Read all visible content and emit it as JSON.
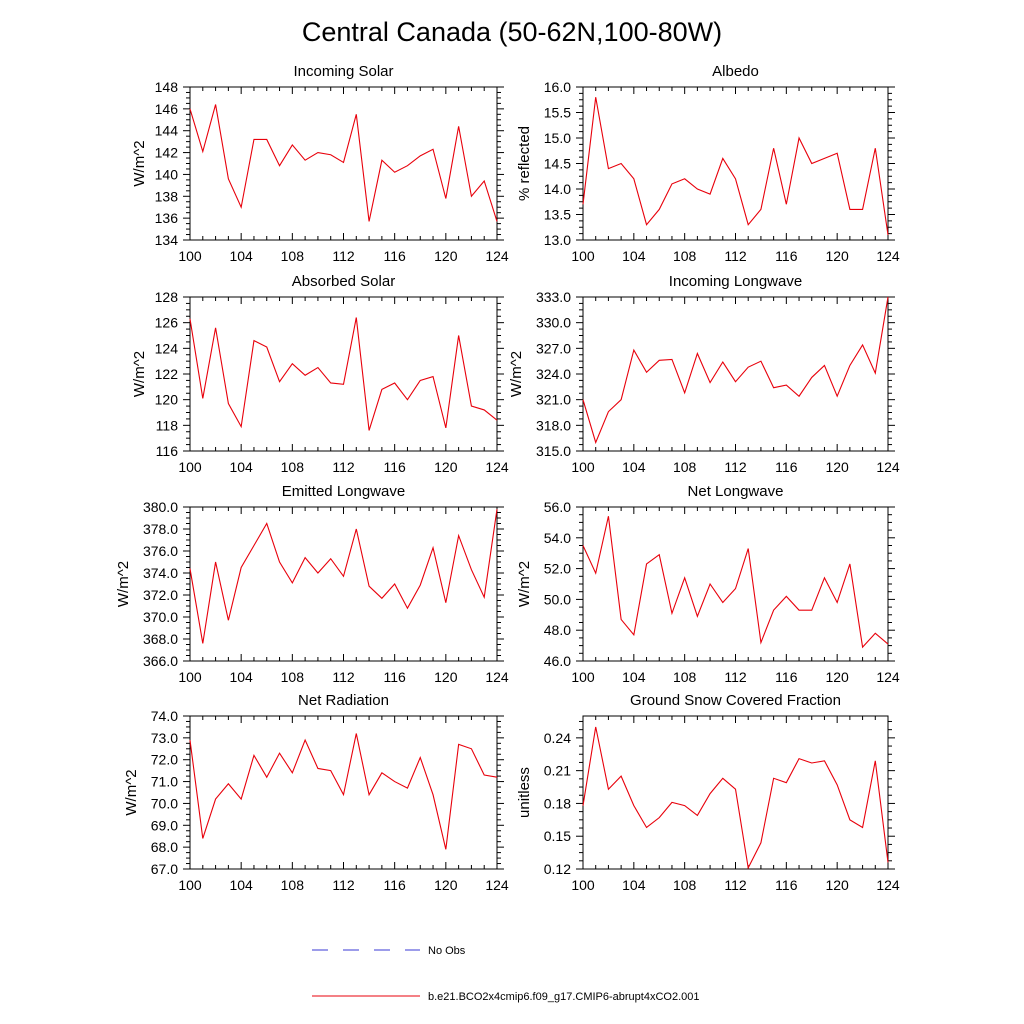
{
  "figure": {
    "title": "Central Canada (50-62N,100-80W)"
  },
  "colors": {
    "model_line": "#e8000b",
    "obs_line": "#3a3ad6",
    "frame": "#000000"
  },
  "legend": {
    "obs_label": "No Obs",
    "model_label": "b.e21.BCO2x4cmip6.f09_g17.CMIP6-abrupt4xCO2.001"
  },
  "chart_data": [
    {
      "type": "line",
      "title": "Incoming Solar",
      "ylabel": "W/m^2",
      "xlabel": "",
      "xlim": [
        100,
        124
      ],
      "ylim": [
        134,
        148
      ],
      "xticks": [
        "100",
        "104",
        "108",
        "112",
        "116",
        "120",
        "124"
      ],
      "yticks": [
        "134",
        "136",
        "138",
        "140",
        "142",
        "144",
        "146",
        "148"
      ],
      "x": [
        100,
        101,
        102,
        103,
        104,
        105,
        106,
        107,
        108,
        109,
        110,
        111,
        112,
        113,
        114,
        115,
        116,
        117,
        118,
        119,
        120,
        121,
        122,
        123,
        124
      ],
      "series": [
        {
          "name": "b.e21.BCO2x4cmip6.f09_g17.CMIP6-abrupt4xCO2.001",
          "values": [
            146.0,
            142.1,
            146.4,
            139.6,
            137.0,
            143.2,
            143.2,
            140.8,
            142.7,
            141.3,
            142.0,
            141.8,
            141.1,
            145.5,
            135.7,
            141.3,
            140.2,
            140.8,
            141.7,
            142.3,
            137.8,
            144.4,
            138.0,
            139.4,
            135.7
          ]
        }
      ]
    },
    {
      "type": "line",
      "title": "Albedo",
      "ylabel": "% reflected",
      "xlabel": "",
      "xlim": [
        100,
        124
      ],
      "ylim": [
        13.0,
        16.0
      ],
      "xticks": [
        "100",
        "104",
        "108",
        "112",
        "116",
        "120",
        "124"
      ],
      "yticks": [
        "13.0",
        "13.5",
        "14.0",
        "14.5",
        "15.0",
        "15.5",
        "16.0"
      ],
      "x": [
        100,
        101,
        102,
        103,
        104,
        105,
        106,
        107,
        108,
        109,
        110,
        111,
        112,
        113,
        114,
        115,
        116,
        117,
        118,
        119,
        120,
        121,
        122,
        123,
        124
      ],
      "series": [
        {
          "name": "b.e21.BCO2x4cmip6.f09_g17.CMIP6-abrupt4xCO2.001",
          "values": [
            13.7,
            15.8,
            14.4,
            14.5,
            14.2,
            13.3,
            13.6,
            14.1,
            14.2,
            14.0,
            13.9,
            14.6,
            14.2,
            13.3,
            13.6,
            14.8,
            13.7,
            15.0,
            14.5,
            14.6,
            14.7,
            13.6,
            13.6,
            14.8,
            13.1
          ]
        }
      ]
    },
    {
      "type": "line",
      "title": "Absorbed Solar",
      "ylabel": "W/m^2",
      "xlabel": "",
      "xlim": [
        100,
        124
      ],
      "ylim": [
        116,
        128
      ],
      "xticks": [
        "100",
        "104",
        "108",
        "112",
        "116",
        "120",
        "124"
      ],
      "yticks": [
        "116",
        "118",
        "120",
        "122",
        "124",
        "126",
        "128"
      ],
      "x": [
        100,
        101,
        102,
        103,
        104,
        105,
        106,
        107,
        108,
        109,
        110,
        111,
        112,
        113,
        114,
        115,
        116,
        117,
        118,
        119,
        120,
        121,
        122,
        123,
        124
      ],
      "series": [
        {
          "name": "b.e21.BCO2x4cmip6.f09_g17.CMIP6-abrupt4xCO2.001",
          "values": [
            126.3,
            120.1,
            125.6,
            119.7,
            117.9,
            124.6,
            124.1,
            121.4,
            122.8,
            121.9,
            122.5,
            121.3,
            121.2,
            126.4,
            117.6,
            120.8,
            121.3,
            120.0,
            121.5,
            121.8,
            117.8,
            125.0,
            119.5,
            119.2,
            118.4
          ]
        }
      ]
    },
    {
      "type": "line",
      "title": "Incoming Longwave",
      "ylabel": "W/m^2",
      "xlabel": "",
      "xlim": [
        100,
        124
      ],
      "ylim": [
        315.0,
        333.0
      ],
      "xticks": [
        "100",
        "104",
        "108",
        "112",
        "116",
        "120",
        "124"
      ],
      "yticks": [
        "315.0",
        "318.0",
        "321.0",
        "324.0",
        "327.0",
        "330.0",
        "333.0"
      ],
      "x": [
        100,
        101,
        102,
        103,
        104,
        105,
        106,
        107,
        108,
        109,
        110,
        111,
        112,
        113,
        114,
        115,
        116,
        117,
        118,
        119,
        120,
        121,
        122,
        123,
        124
      ],
      "series": [
        {
          "name": "b.e21.BCO2x4cmip6.f09_g17.CMIP6-abrupt4xCO2.001",
          "values": [
            321.0,
            316.0,
            319.6,
            321.0,
            326.8,
            324.2,
            325.6,
            325.7,
            321.8,
            326.4,
            323.0,
            325.4,
            323.1,
            324.8,
            325.5,
            322.4,
            322.7,
            321.4,
            323.6,
            325.0,
            321.4,
            325.0,
            327.4,
            324.1,
            333.0
          ]
        }
      ]
    },
    {
      "type": "line",
      "title": "Emitted Longwave",
      "ylabel": "W/m^2",
      "xlabel": "",
      "xlim": [
        100,
        124
      ],
      "ylim": [
        366.0,
        380.0
      ],
      "xticks": [
        "100",
        "104",
        "108",
        "112",
        "116",
        "120",
        "124"
      ],
      "yticks": [
        "366.0",
        "368.0",
        "370.0",
        "372.0",
        "374.0",
        "376.0",
        "378.0",
        "380.0"
      ],
      "x": [
        100,
        101,
        102,
        103,
        104,
        105,
        106,
        107,
        108,
        109,
        110,
        111,
        112,
        113,
        114,
        115,
        116,
        117,
        118,
        119,
        120,
        121,
        122,
        123,
        124
      ],
      "series": [
        {
          "name": "b.e21.BCO2x4cmip6.f09_g17.CMIP6-abrupt4xCO2.001",
          "values": [
            374.4,
            367.6,
            375.0,
            369.7,
            374.5,
            376.5,
            378.5,
            375.0,
            373.1,
            375.4,
            374.0,
            375.3,
            373.7,
            378.0,
            372.8,
            371.7,
            373.0,
            370.8,
            372.9,
            376.3,
            371.3,
            377.4,
            374.3,
            371.8,
            379.8
          ]
        }
      ]
    },
    {
      "type": "line",
      "title": "Net Longwave",
      "ylabel": "W/m^2",
      "xlabel": "",
      "xlim": [
        100,
        124
      ],
      "ylim": [
        46.0,
        56.0
      ],
      "xticks": [
        "100",
        "104",
        "108",
        "112",
        "116",
        "120",
        "124"
      ],
      "yticks": [
        "46.0",
        "48.0",
        "50.0",
        "52.0",
        "54.0",
        "56.0"
      ],
      "x": [
        100,
        101,
        102,
        103,
        104,
        105,
        106,
        107,
        108,
        109,
        110,
        111,
        112,
        113,
        114,
        115,
        116,
        117,
        118,
        119,
        120,
        121,
        122,
        123,
        124
      ],
      "series": [
        {
          "name": "b.e21.BCO2x4cmip6.f09_g17.CMIP6-abrupt4xCO2.001",
          "values": [
            53.5,
            51.7,
            55.4,
            48.7,
            47.7,
            52.3,
            52.9,
            49.1,
            51.4,
            48.9,
            51.0,
            49.8,
            50.7,
            53.3,
            47.2,
            49.3,
            50.2,
            49.3,
            49.3,
            51.4,
            49.8,
            52.3,
            46.9,
            47.8,
            47.1
          ]
        }
      ]
    },
    {
      "type": "line",
      "title": "Net Radiation",
      "ylabel": "W/m^2",
      "xlabel": "",
      "xlim": [
        100,
        124
      ],
      "ylim": [
        67.0,
        74.0
      ],
      "xticks": [
        "100",
        "104",
        "108",
        "112",
        "116",
        "120",
        "124"
      ],
      "yticks": [
        "67.0",
        "68.0",
        "69.0",
        "70.0",
        "71.0",
        "72.0",
        "73.0",
        "74.0"
      ],
      "x": [
        100,
        101,
        102,
        103,
        104,
        105,
        106,
        107,
        108,
        109,
        110,
        111,
        112,
        113,
        114,
        115,
        116,
        117,
        118,
        119,
        120,
        121,
        122,
        123,
        124
      ],
      "series": [
        {
          "name": "b.e21.BCO2x4cmip6.f09_g17.CMIP6-abrupt4xCO2.001",
          "values": [
            72.9,
            68.4,
            70.2,
            70.9,
            70.2,
            72.2,
            71.2,
            72.3,
            71.4,
            72.9,
            71.6,
            71.5,
            70.4,
            73.2,
            70.4,
            71.4,
            71.0,
            70.7,
            72.1,
            70.4,
            67.9,
            72.7,
            72.5,
            71.3,
            71.2
          ]
        }
      ]
    },
    {
      "type": "line",
      "title": "Ground Snow Covered Fraction",
      "ylabel": "unitless",
      "xlabel": "",
      "xlim": [
        100,
        124
      ],
      "ylim": [
        0.12,
        0.26
      ],
      "xticks": [
        "100",
        "104",
        "108",
        "112",
        "116",
        "120",
        "124"
      ],
      "yticks": [
        "0.12",
        "0.15",
        "0.18",
        "0.21",
        "0.24"
      ],
      "ytick_values": [
        0.12,
        0.15,
        0.18,
        0.21,
        0.24
      ],
      "x": [
        100,
        101,
        102,
        103,
        104,
        105,
        106,
        107,
        108,
        109,
        110,
        111,
        112,
        113,
        114,
        115,
        116,
        117,
        118,
        119,
        120,
        121,
        122,
        123,
        124
      ],
      "series": [
        {
          "name": "b.e21.BCO2x4cmip6.f09_g17.CMIP6-abrupt4xCO2.001",
          "values": [
            0.178,
            0.25,
            0.193,
            0.205,
            0.178,
            0.158,
            0.167,
            0.181,
            0.178,
            0.169,
            0.189,
            0.203,
            0.193,
            0.121,
            0.144,
            0.203,
            0.199,
            0.221,
            0.217,
            0.219,
            0.197,
            0.165,
            0.158,
            0.219,
            0.126
          ]
        }
      ]
    }
  ]
}
